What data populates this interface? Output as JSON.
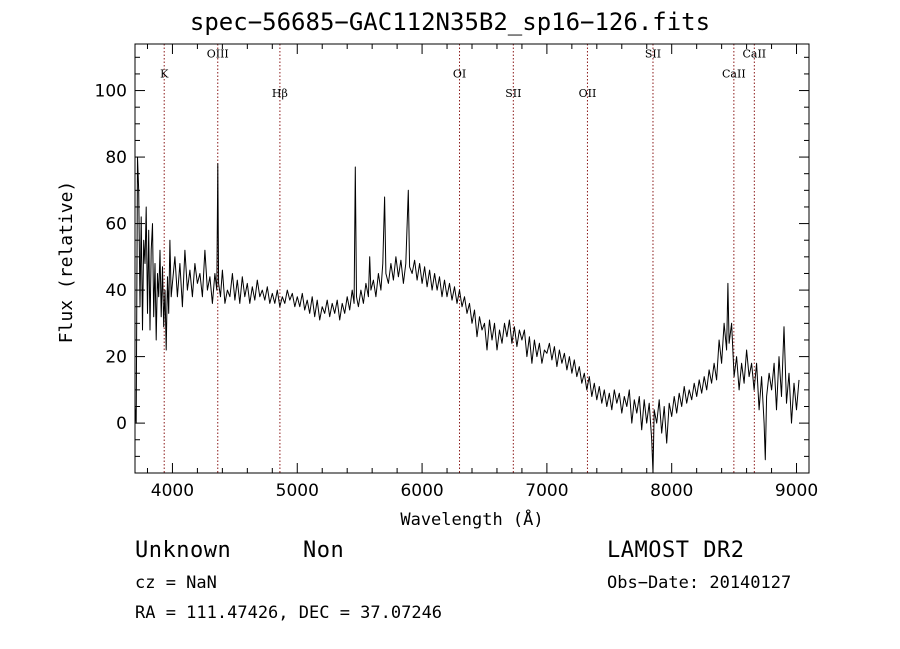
{
  "title": "spec−56685−GAC112N35B2_sp16−126.fits",
  "info": {
    "class": "Unknown",
    "subclass": "Non",
    "cz": "cz = NaN",
    "radec": "RA = 111.47426, DEC =  37.07246",
    "survey": "LAMOST DR2",
    "obs_date": "Obs−Date: 20140127"
  },
  "chart_data": {
    "type": "line",
    "title": "spec−56685−GAC112N35B2_sp16−126.fits",
    "xlabel": "Wavelength (Å)",
    "ylabel": "Flux (relative)",
    "xlim": [
      3700,
      9100
    ],
    "ylim": [
      -15,
      114
    ],
    "xticks": [
      4000,
      5000,
      6000,
      7000,
      8000,
      9000
    ],
    "yticks": [
      0,
      20,
      40,
      60,
      80,
      100
    ],
    "grid": false,
    "line_color": "#000000",
    "marker_color": "#8b1a1a",
    "lines": [
      {
        "label": "K",
        "wavelength": 3934,
        "label_level": 104
      },
      {
        "label": "OIII",
        "wavelength": 4363,
        "label_level": 110
      },
      {
        "label": "Hβ",
        "wavelength": 4861,
        "label_level": 98
      },
      {
        "label": "OI",
        "wavelength": 6300,
        "label_level": 104
      },
      {
        "label": "SII",
        "wavelength": 6731,
        "label_level": 98
      },
      {
        "label": "OII",
        "wavelength": 7325,
        "label_level": 98
      },
      {
        "label": "SII",
        "wavelength": 7850,
        "label_level": 110
      },
      {
        "label": "CaII",
        "wavelength": 8498,
        "label_level": 104
      },
      {
        "label": "CaII",
        "wavelength": 8662,
        "label_level": 110
      }
    ],
    "spectrum": [
      [
        3700,
        5
      ],
      [
        3710,
        0
      ],
      [
        3720,
        80
      ],
      [
        3730,
        70
      ],
      [
        3740,
        35
      ],
      [
        3750,
        62
      ],
      [
        3760,
        28
      ],
      [
        3770,
        55
      ],
      [
        3780,
        48
      ],
      [
        3790,
        65
      ],
      [
        3800,
        33
      ],
      [
        3810,
        58
      ],
      [
        3820,
        28
      ],
      [
        3830,
        52
      ],
      [
        3840,
        60
      ],
      [
        3850,
        32
      ],
      [
        3860,
        48
      ],
      [
        3870,
        25
      ],
      [
        3880,
        45
      ],
      [
        3890,
        38
      ],
      [
        3900,
        52
      ],
      [
        3910,
        32
      ],
      [
        3920,
        47
      ],
      [
        3930,
        29
      ],
      [
        3940,
        40
      ],
      [
        3950,
        22
      ],
      [
        3960,
        44
      ],
      [
        3970,
        33
      ],
      [
        3980,
        55
      ],
      [
        3990,
        38
      ],
      [
        4000,
        42
      ],
      [
        4020,
        50
      ],
      [
        4040,
        38
      ],
      [
        4060,
        48
      ],
      [
        4080,
        35
      ],
      [
        4100,
        52
      ],
      [
        4120,
        40
      ],
      [
        4140,
        46
      ],
      [
        4160,
        38
      ],
      [
        4180,
        48
      ],
      [
        4200,
        42
      ],
      [
        4220,
        45
      ],
      [
        4240,
        38
      ],
      [
        4260,
        52
      ],
      [
        4280,
        40
      ],
      [
        4300,
        44
      ],
      [
        4320,
        36
      ],
      [
        4340,
        45
      ],
      [
        4355,
        40
      ],
      [
        4363,
        78
      ],
      [
        4370,
        42
      ],
      [
        4385,
        38
      ],
      [
        4400,
        46
      ],
      [
        4420,
        36
      ],
      [
        4440,
        40
      ],
      [
        4460,
        38
      ],
      [
        4480,
        45
      ],
      [
        4500,
        37
      ],
      [
        4520,
        43
      ],
      [
        4540,
        36
      ],
      [
        4560,
        44
      ],
      [
        4580,
        38
      ],
      [
        4600,
        42
      ],
      [
        4620,
        36
      ],
      [
        4640,
        41
      ],
      [
        4660,
        37
      ],
      [
        4680,
        43
      ],
      [
        4700,
        38
      ],
      [
        4720,
        40
      ],
      [
        4740,
        37
      ],
      [
        4760,
        41
      ],
      [
        4780,
        36
      ],
      [
        4800,
        39
      ],
      [
        4820,
        36
      ],
      [
        4840,
        40
      ],
      [
        4860,
        35
      ],
      [
        4880,
        38
      ],
      [
        4900,
        36
      ],
      [
        4920,
        40
      ],
      [
        4940,
        37
      ],
      [
        4960,
        39
      ],
      [
        4980,
        35
      ],
      [
        5000,
        38
      ],
      [
        5020,
        35
      ],
      [
        5040,
        39
      ],
      [
        5060,
        34
      ],
      [
        5080,
        37
      ],
      [
        5100,
        33
      ],
      [
        5120,
        38
      ],
      [
        5140,
        32
      ],
      [
        5160,
        37
      ],
      [
        5180,
        31
      ],
      [
        5200,
        35
      ],
      [
        5220,
        33
      ],
      [
        5240,
        37
      ],
      [
        5260,
        32
      ],
      [
        5280,
        36
      ],
      [
        5300,
        33
      ],
      [
        5320,
        37
      ],
      [
        5340,
        31
      ],
      [
        5360,
        36
      ],
      [
        5380,
        33
      ],
      [
        5400,
        38
      ],
      [
        5420,
        34
      ],
      [
        5440,
        40
      ],
      [
        5455,
        36
      ],
      [
        5465,
        77
      ],
      [
        5475,
        38
      ],
      [
        5490,
        35
      ],
      [
        5510,
        40
      ],
      [
        5530,
        36
      ],
      [
        5550,
        42
      ],
      [
        5570,
        38
      ],
      [
        5580,
        50
      ],
      [
        5590,
        40
      ],
      [
        5610,
        43
      ],
      [
        5630,
        38
      ],
      [
        5650,
        45
      ],
      [
        5670,
        40
      ],
      [
        5685,
        48
      ],
      [
        5700,
        68
      ],
      [
        5710,
        45
      ],
      [
        5730,
        42
      ],
      [
        5750,
        48
      ],
      [
        5770,
        43
      ],
      [
        5790,
        50
      ],
      [
        5810,
        44
      ],
      [
        5830,
        49
      ],
      [
        5850,
        42
      ],
      [
        5870,
        48
      ],
      [
        5890,
        70
      ],
      [
        5900,
        47
      ],
      [
        5920,
        45
      ],
      [
        5940,
        49
      ],
      [
        5960,
        43
      ],
      [
        5980,
        48
      ],
      [
        6000,
        42
      ],
      [
        6020,
        47
      ],
      [
        6040,
        41
      ],
      [
        6060,
        46
      ],
      [
        6080,
        40
      ],
      [
        6100,
        45
      ],
      [
        6120,
        40
      ],
      [
        6140,
        44
      ],
      [
        6160,
        38
      ],
      [
        6180,
        43
      ],
      [
        6200,
        38
      ],
      [
        6220,
        42
      ],
      [
        6240,
        37
      ],
      [
        6260,
        41
      ],
      [
        6280,
        36
      ],
      [
        6300,
        40
      ],
      [
        6320,
        35
      ],
      [
        6340,
        38
      ],
      [
        6360,
        33
      ],
      [
        6380,
        36
      ],
      [
        6400,
        30
      ],
      [
        6420,
        34
      ],
      [
        6440,
        26
      ],
      [
        6460,
        32
      ],
      [
        6480,
        28
      ],
      [
        6500,
        30
      ],
      [
        6520,
        22
      ],
      [
        6540,
        31
      ],
      [
        6560,
        25
      ],
      [
        6580,
        30
      ],
      [
        6600,
        22
      ],
      [
        6620,
        28
      ],
      [
        6640,
        24
      ],
      [
        6660,
        30
      ],
      [
        6680,
        26
      ],
      [
        6700,
        31
      ],
      [
        6720,
        24
      ],
      [
        6740,
        29
      ],
      [
        6760,
        23
      ],
      [
        6780,
        28
      ],
      [
        6800,
        25
      ],
      [
        6820,
        28
      ],
      [
        6840,
        20
      ],
      [
        6860,
        26
      ],
      [
        6880,
        18
      ],
      [
        6900,
        25
      ],
      [
        6920,
        20
      ],
      [
        6940,
        24
      ],
      [
        6960,
        18
      ],
      [
        6980,
        22
      ],
      [
        7000,
        21
      ],
      [
        7020,
        24
      ],
      [
        7040,
        19
      ],
      [
        7060,
        23
      ],
      [
        7080,
        17
      ],
      [
        7100,
        22
      ],
      [
        7120,
        18
      ],
      [
        7140,
        21
      ],
      [
        7160,
        16
      ],
      [
        7180,
        20
      ],
      [
        7200,
        15
      ],
      [
        7220,
        19
      ],
      [
        7240,
        14
      ],
      [
        7260,
        17
      ],
      [
        7280,
        12
      ],
      [
        7300,
        15
      ],
      [
        7320,
        10
      ],
      [
        7340,
        14
      ],
      [
        7360,
        8
      ],
      [
        7380,
        12
      ],
      [
        7400,
        7
      ],
      [
        7420,
        11
      ],
      [
        7440,
        6
      ],
      [
        7460,
        10
      ],
      [
        7480,
        5
      ],
      [
        7500,
        9
      ],
      [
        7520,
        4
      ],
      [
        7540,
        10
      ],
      [
        7560,
        6
      ],
      [
        7580,
        9
      ],
      [
        7600,
        3
      ],
      [
        7620,
        8
      ],
      [
        7640,
        5
      ],
      [
        7660,
        10
      ],
      [
        7680,
        0
      ],
      [
        7700,
        7
      ],
      [
        7720,
        3
      ],
      [
        7740,
        8
      ],
      [
        7760,
        -2
      ],
      [
        7780,
        7
      ],
      [
        7800,
        0
      ],
      [
        7820,
        6
      ],
      [
        7840,
        -5
      ],
      [
        7850,
        -15
      ],
      [
        7860,
        4
      ],
      [
        7880,
        0
      ],
      [
        7900,
        7
      ],
      [
        7920,
        -3
      ],
      [
        7940,
        5
      ],
      [
        7960,
        -6
      ],
      [
        7980,
        6
      ],
      [
        8000,
        2
      ],
      [
        8020,
        8
      ],
      [
        8040,
        3
      ],
      [
        8060,
        9
      ],
      [
        8080,
        5
      ],
      [
        8100,
        11
      ],
      [
        8120,
        6
      ],
      [
        8140,
        10
      ],
      [
        8160,
        7
      ],
      [
        8180,
        12
      ],
      [
        8200,
        8
      ],
      [
        8220,
        13
      ],
      [
        8240,
        9
      ],
      [
        8260,
        14
      ],
      [
        8280,
        10
      ],
      [
        8300,
        16
      ],
      [
        8320,
        12
      ],
      [
        8340,
        18
      ],
      [
        8360,
        13
      ],
      [
        8380,
        25
      ],
      [
        8400,
        18
      ],
      [
        8420,
        30
      ],
      [
        8440,
        22
      ],
      [
        8450,
        42
      ],
      [
        8460,
        24
      ],
      [
        8480,
        30
      ],
      [
        8500,
        14
      ],
      [
        8520,
        20
      ],
      [
        8540,
        10
      ],
      [
        8560,
        18
      ],
      [
        8580,
        12
      ],
      [
        8600,
        22
      ],
      [
        8620,
        14
      ],
      [
        8640,
        18
      ],
      [
        8660,
        10
      ],
      [
        8680,
        18
      ],
      [
        8700,
        4
      ],
      [
        8720,
        14
      ],
      [
        8740,
        0
      ],
      [
        8750,
        -11
      ],
      [
        8760,
        8
      ],
      [
        8780,
        15
      ],
      [
        8800,
        10
      ],
      [
        8820,
        18
      ],
      [
        8840,
        4
      ],
      [
        8860,
        20
      ],
      [
        8880,
        8
      ],
      [
        8900,
        29
      ],
      [
        8920,
        6
      ],
      [
        8940,
        15
      ],
      [
        8960,
        0
      ],
      [
        8980,
        12
      ],
      [
        9000,
        4
      ],
      [
        9020,
        13
      ]
    ]
  }
}
